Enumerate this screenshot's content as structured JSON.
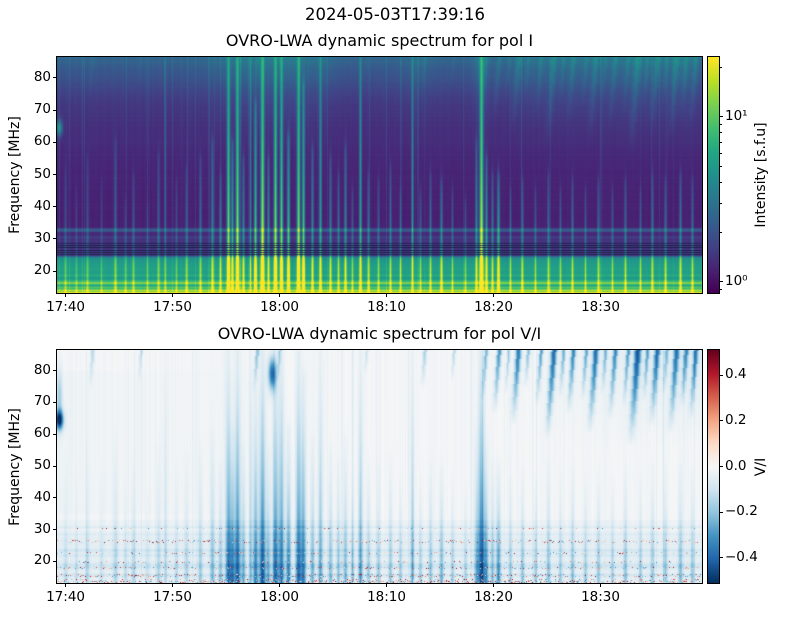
{
  "suptitle": "2024-05-03T17:39:16",
  "chart_data": [
    {
      "type": "heatmap",
      "panel": "pol_I",
      "title": "OVRO-LWA dynamic spectrum for pol I",
      "xlabel": "",
      "ylabel": "Frequency [MHz]",
      "x_start": "17:39:12",
      "x_end": "18:39:29",
      "x_tick_labels": [
        "17:40",
        "17:50",
        "18:00",
        "18:10",
        "18:20",
        "18:30"
      ],
      "y_ticks_mhz": [
        20,
        30,
        40,
        50,
        60,
        70,
        80
      ],
      "y_range_mhz": [
        13.2,
        86.5
      ],
      "colormap": "viridis",
      "colorbar": {
        "label": "Intensity [s.f.u]",
        "scale": "log",
        "range_sfu": [
          0.857,
          23.0
        ],
        "major_ticks": [
          {
            "value": 1,
            "label": "10⁰"
          },
          {
            "value": 10,
            "label": "10¹"
          }
        ],
        "minor_tick_values": [
          0.9,
          2,
          3,
          4,
          5,
          6,
          7,
          8,
          9,
          20
        ]
      },
      "background_profile_mhz_value": [
        [
          86.5,
          0.33
        ],
        [
          83,
          0.28
        ],
        [
          80,
          0.25
        ],
        [
          76,
          0.2
        ],
        [
          72,
          0.165
        ],
        [
          66,
          0.14
        ],
        [
          60,
          0.125
        ],
        [
          52,
          0.105
        ],
        [
          44,
          0.095
        ],
        [
          36,
          0.09
        ],
        [
          33.6,
          0.095
        ],
        [
          33.0,
          0.26
        ],
        [
          32.5,
          0.3
        ],
        [
          32.0,
          0.12
        ],
        [
          31.2,
          0.11
        ],
        [
          30.4,
          0.2
        ],
        [
          30.0,
          0.12
        ],
        [
          29.4,
          0.16
        ],
        [
          28.8,
          0.12
        ],
        [
          28.4,
          0.16
        ],
        [
          28.0,
          0.14
        ],
        [
          24.8,
          0.16
        ],
        [
          24.3,
          0.45
        ],
        [
          23.5,
          0.52
        ],
        [
          22.0,
          0.55
        ],
        [
          20.5,
          0.57
        ],
        [
          19.5,
          0.55
        ],
        [
          18.5,
          0.62
        ],
        [
          17.8,
          0.5
        ],
        [
          17.2,
          0.6
        ],
        [
          16.6,
          0.72
        ],
        [
          16.2,
          0.85
        ],
        [
          15.8,
          0.62
        ],
        [
          15.4,
          0.58
        ],
        [
          15.0,
          0.74
        ],
        [
          14.5,
          0.66
        ],
        [
          14.0,
          0.9
        ],
        [
          13.7,
          0.78
        ],
        [
          13.2,
          1.0
        ]
      ],
      "dark_bands": [
        {
          "f": 28.5,
          "h": 0.25,
          "k": 0.55
        },
        {
          "f": 27.9,
          "h": 0.3,
          "k": 0.75
        },
        {
          "f": 27.2,
          "h": 0.35,
          "k": 0.8
        },
        {
          "f": 26.5,
          "h": 0.3,
          "k": 0.8
        },
        {
          "f": 25.8,
          "h": 0.35,
          "k": 0.75
        },
        {
          "f": 25.1,
          "h": 0.3,
          "k": 0.7
        }
      ],
      "left_edge_spot": {
        "t_frac": 0.003,
        "f_mhz": 64.5,
        "strength": 0.38
      },
      "haze": [
        {
          "t": 0.3,
          "w": 0.055,
          "a": 0.09
        },
        {
          "t": 0.365,
          "w": 0.03,
          "a": 0.07
        },
        {
          "t": 0.41,
          "w": 0.02,
          "a": 0.05
        },
        {
          "t": 0.56,
          "w": 0.025,
          "a": 0.04
        },
        {
          "t": 0.657,
          "w": 0.012,
          "a": 0.11
        },
        {
          "t": 0.73,
          "w": 0.04,
          "a": 0.05
        },
        {
          "t": 0.8,
          "w": 0.05,
          "a": 0.06
        },
        {
          "t": 0.9,
          "w": 0.06,
          "a": 0.08
        },
        {
          "t": 0.97,
          "w": 0.03,
          "a": 0.07
        }
      ],
      "bursts_format": "[time_fraction, intensity_0to1, top_freq_MHz, width_px]",
      "bursts": [
        [
          0.012,
          0.22,
          52,
          1.2
        ],
        [
          0.03,
          0.18,
          45,
          1
        ],
        [
          0.047,
          0.25,
          55,
          1.2
        ],
        [
          0.068,
          0.2,
          48,
          1
        ],
        [
          0.09,
          0.3,
          60,
          1.3
        ],
        [
          0.105,
          0.22,
          42,
          1
        ],
        [
          0.118,
          0.28,
          50,
          1.2
        ],
        [
          0.14,
          0.2,
          40,
          1
        ],
        [
          0.157,
          0.3,
          56,
          1.2
        ],
        [
          0.167,
          0.28,
          86,
          0.9
        ],
        [
          0.185,
          0.25,
          48,
          1
        ],
        [
          0.2,
          0.3,
          52,
          1.2
        ],
        [
          0.222,
          0.35,
          55,
          1.2
        ],
        [
          0.24,
          0.45,
          60,
          1.3
        ],
        [
          0.252,
          0.4,
          50,
          1.2
        ],
        [
          0.265,
          0.85,
          86,
          1.6
        ],
        [
          0.271,
          0.65,
          60,
          1.2
        ],
        [
          0.279,
          0.9,
          86,
          1.7
        ],
        [
          0.288,
          0.5,
          55,
          1.2
        ],
        [
          0.299,
          0.45,
          86,
          0.9
        ],
        [
          0.307,
          0.75,
          72,
          1.4
        ],
        [
          0.318,
          0.95,
          86,
          1.8
        ],
        [
          0.327,
          0.5,
          55,
          1.2
        ],
        [
          0.338,
          0.88,
          86,
          1.6
        ],
        [
          0.347,
          0.8,
          86,
          1.5
        ],
        [
          0.358,
          0.75,
          62,
          1.4
        ],
        [
          0.374,
          0.85,
          86,
          1.6
        ],
        [
          0.381,
          0.75,
          78,
          1.4
        ],
        [
          0.395,
          0.5,
          58,
          1.2
        ],
        [
          0.408,
          0.55,
          86,
          1.3
        ],
        [
          0.423,
          0.45,
          55,
          1.2
        ],
        [
          0.436,
          0.4,
          50,
          1.1
        ],
        [
          0.447,
          0.5,
          58,
          1.2
        ],
        [
          0.457,
          0.35,
          45,
          1
        ],
        [
          0.47,
          0.6,
          86,
          1.2
        ],
        [
          0.482,
          0.4,
          50,
          1.1
        ],
        [
          0.498,
          0.35,
          48,
          1
        ],
        [
          0.516,
          0.4,
          52,
          1.1
        ],
        [
          0.532,
          0.35,
          45,
          1
        ],
        [
          0.55,
          0.55,
          86,
          1.0
        ],
        [
          0.563,
          0.35,
          45,
          1
        ],
        [
          0.578,
          0.4,
          50,
          1.1
        ],
        [
          0.595,
          0.5,
          48,
          1.2
        ],
        [
          0.612,
          0.35,
          45,
          1
        ],
        [
          0.633,
          0.3,
          42,
          1
        ],
        [
          0.65,
          0.5,
          60,
          1.2
        ],
        [
          0.657,
          1.0,
          86,
          1.8
        ],
        [
          0.665,
          0.6,
          55,
          1.2
        ],
        [
          0.674,
          0.45,
          50,
          1.1
        ],
        [
          0.684,
          0.7,
          50,
          1.3
        ],
        [
          0.702,
          0.35,
          45,
          1
        ],
        [
          0.721,
          0.4,
          48,
          1.1
        ],
        [
          0.741,
          0.35,
          45,
          1
        ],
        [
          0.761,
          0.4,
          50,
          1.1
        ],
        [
          0.78,
          0.35,
          45,
          1
        ],
        [
          0.798,
          0.4,
          48,
          1.1
        ],
        [
          0.819,
          0.35,
          45,
          1
        ],
        [
          0.839,
          0.4,
          48,
          1.1
        ],
        [
          0.86,
          0.35,
          45,
          1
        ],
        [
          0.881,
          0.4,
          48,
          1.1
        ],
        [
          0.904,
          0.35,
          45,
          1
        ],
        [
          0.922,
          0.4,
          50,
          1.1
        ],
        [
          0.943,
          0.4,
          48,
          1.1
        ],
        [
          0.966,
          0.45,
          50,
          1.2
        ],
        [
          0.985,
          0.4,
          48,
          1.1
        ]
      ]
    },
    {
      "type": "heatmap",
      "panel": "pol_V_over_I",
      "title": "OVRO-LWA dynamic spectrum for pol V/I",
      "xlabel": "",
      "ylabel": "Frequency [MHz]",
      "x_start": "17:39:12",
      "x_end": "18:39:29",
      "x_tick_labels": [
        "17:40",
        "17:50",
        "18:00",
        "18:10",
        "18:20",
        "18:30"
      ],
      "y_ticks_mhz": [
        20,
        30,
        40,
        50,
        60,
        70,
        80
      ],
      "y_range_mhz": [
        13.2,
        86.5
      ],
      "colormap": "RdBu_r",
      "colorbar": {
        "label": "V/I",
        "scale": "linear",
        "range": [
          -0.51,
          0.51
        ],
        "major_ticks": [
          {
            "value": 0.4,
            "label": "0.4"
          },
          {
            "value": 0.2,
            "label": "0.2"
          },
          {
            "value": 0.0,
            "label": "0.0"
          },
          {
            "value": -0.2,
            "label": "−0.2"
          },
          {
            "value": -0.4,
            "label": "−0.4"
          }
        ]
      },
      "features": {
        "left_edge_spot": {
          "t_frac": 0.003,
          "f_mhz": 64.5,
          "vi": -0.5
        },
        "high_freq_blob": {
          "t_frac": 0.333,
          "f_mhz": 79,
          "vi": -0.38
        },
        "burst_vi_scale": -0.42,
        "speckle_bands": [
          {
            "f": 26.4,
            "rows": 3,
            "density": 0.45,
            "red": 0.55
          },
          {
            "f": 22.6,
            "rows": 2,
            "density": 0.22,
            "red": 0.5
          },
          {
            "f": 19.8,
            "rows": 2,
            "density": 0.25,
            "red": 0.5
          },
          {
            "f": 17.9,
            "rows": 2,
            "density": 0.3,
            "red": 0.5
          },
          {
            "f": 15.6,
            "rows": 3,
            "density": 0.55,
            "red": 0.52
          },
          {
            "f": 14.2,
            "rows": 3,
            "density": 0.5,
            "red": 0.5
          },
          {
            "f": 13.5,
            "rows": 2,
            "density": 0.55,
            "red": 0.5
          },
          {
            "f": 30.5,
            "rows": 1,
            "density": 0.12,
            "red": 0.5
          }
        ],
        "wash_bands": [
          {
            "f": 23.4,
            "h": 0.5,
            "a": 0.05
          },
          {
            "f": 21.9,
            "h": 0.5,
            "a": 0.04
          },
          {
            "f": 18.6,
            "h": 1.0,
            "a": 0.06
          },
          {
            "f": 28.6,
            "h": 0.5,
            "a": 0.03
          },
          {
            "f": 26.0,
            "h": 2.0,
            "a": 0.025
          },
          {
            "f": 15.6,
            "h": 0.6,
            "a": 0.05
          },
          {
            "f": 30.8,
            "h": 0.4,
            "a": 0.03
          }
        ],
        "diag_streaks_format": "[time_fraction, length_MHz, alpha, width_px]",
        "diag_streaks": [
          [
            0.665,
            16,
            0.22,
            2
          ],
          [
            0.685,
            20,
            0.3,
            2.5
          ],
          [
            0.7,
            14,
            0.18,
            1.5
          ],
          [
            0.715,
            24,
            0.34,
            3
          ],
          [
            0.73,
            12,
            0.2,
            2
          ],
          [
            0.75,
            18,
            0.26,
            2
          ],
          [
            0.77,
            28,
            0.38,
            3
          ],
          [
            0.785,
            15,
            0.22,
            2
          ],
          [
            0.8,
            20,
            0.3,
            2.5
          ],
          [
            0.82,
            16,
            0.24,
            2
          ],
          [
            0.835,
            26,
            0.36,
            3
          ],
          [
            0.85,
            14,
            0.2,
            2
          ],
          [
            0.865,
            22,
            0.3,
            2.5
          ],
          [
            0.885,
            18,
            0.26,
            2
          ],
          [
            0.9,
            30,
            0.4,
            3.5
          ],
          [
            0.915,
            16,
            0.24,
            2
          ],
          [
            0.93,
            24,
            0.34,
            3
          ],
          [
            0.945,
            14,
            0.2,
            2
          ],
          [
            0.96,
            26,
            0.34,
            3
          ],
          [
            0.975,
            18,
            0.28,
            2.5
          ],
          [
            0.99,
            22,
            0.32,
            2.5
          ],
          [
            0.31,
            14,
            0.2,
            2
          ],
          [
            0.345,
            10,
            0.14,
            1.5
          ],
          [
            0.055,
            12,
            0.14,
            2
          ],
          [
            0.13,
            10,
            0.12,
            1.5
          ],
          [
            0.57,
            12,
            0.16,
            2
          ],
          [
            0.615,
            10,
            0.14,
            1.5
          ],
          [
            0.48,
            8,
            0.1,
            1.5
          ]
        ]
      }
    }
  ]
}
